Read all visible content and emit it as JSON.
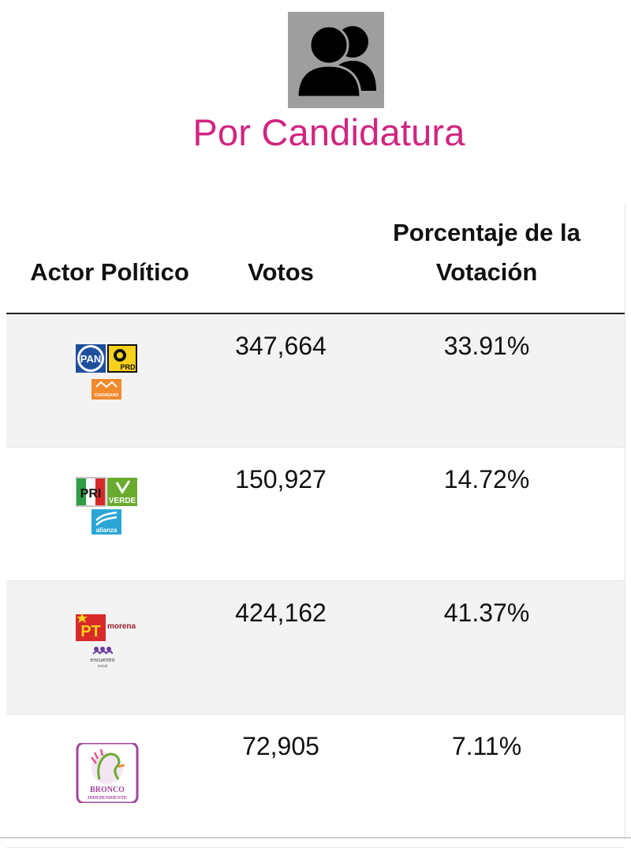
{
  "header": {
    "icon": "people-group-icon",
    "title": "Por Candidatura"
  },
  "table": {
    "columns": {
      "actor": "Actor Político",
      "votes": "Votos",
      "pct_line1": "Porcentaje de la",
      "pct_line2": "Votación"
    },
    "rows": [
      {
        "logo": "pan-prd-mc-coalition-logo",
        "votes": "347,664",
        "pct": "33.91%"
      },
      {
        "logo": "pri-verde-alianza-coalition-logo",
        "votes": "150,927",
        "pct": "14.72%"
      },
      {
        "logo": "pt-morena-encuentro-social-coalition-logo",
        "votes": "424,162",
        "pct": "41.37%"
      },
      {
        "logo": "bronco-independiente-logo",
        "votes": "72,905",
        "pct": "7.11%"
      }
    ]
  },
  "colors": {
    "title": "#d1257f",
    "icon_bg": "#9e9e9e",
    "row_shade": "#f3f3f3"
  }
}
